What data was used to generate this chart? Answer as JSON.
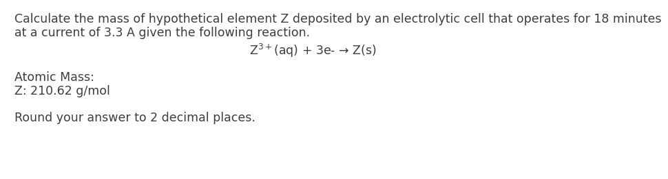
{
  "line1": "Calculate the mass of hypothetical element Z deposited by an electrolytic cell that operates for 18 minutes",
  "line2": "at a current of 3.3 A given the following reaction.",
  "reaction": "Z$^{3+}$(aq) + 3e- → Z(s)",
  "atomic_mass_label": "Atomic Mass:",
  "atomic_mass_value": "Z: 210.62 g/mol",
  "round_note": "Round your answer to 2 decimal places.",
  "bg_color": "#ffffff",
  "text_color": "#3d3d3d",
  "font_size": 12.5
}
